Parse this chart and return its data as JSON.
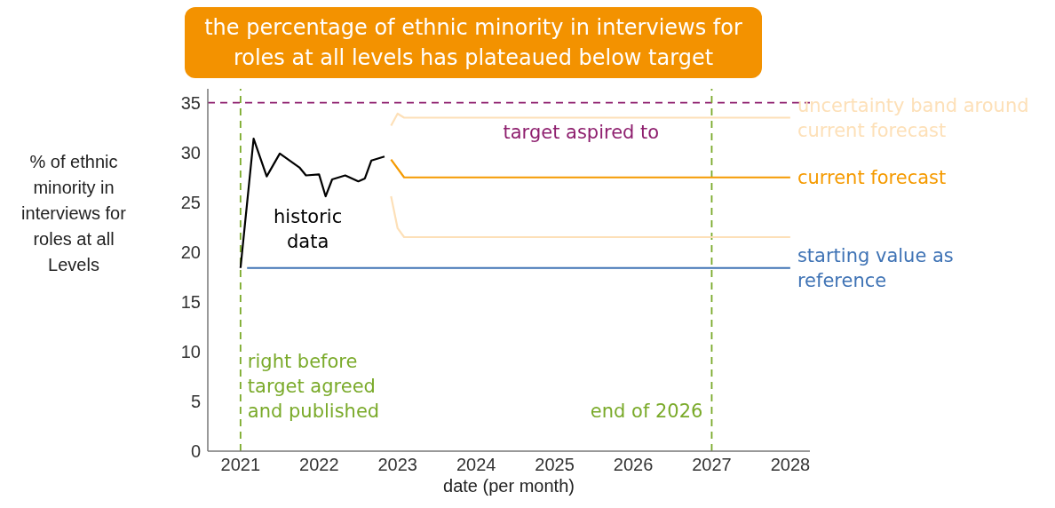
{
  "chart_data": {
    "type": "line",
    "title": "the percentage of ethnic minority in interviews for roles at all levels has plateaued below target",
    "xlabel": "date (per month)",
    "ylabel": "% of ethnic minority in interviews for roles at all Levels",
    "series": [
      {
        "name": "historic data",
        "color": "#000000",
        "x": [
          "2021-01",
          "2021-03",
          "2021-05",
          "2021-07",
          "2021-10",
          "2021-11",
          "2022-01",
          "2022-02",
          "2022-03",
          "2022-05",
          "2022-07",
          "2022-08",
          "2022-09",
          "2022-11"
        ],
        "values": [
          18.4,
          31.4,
          27.6,
          29.9,
          28.5,
          27.7,
          27.8,
          25.6,
          27.3,
          27.7,
          27.1,
          27.4,
          29.2,
          29.6
        ]
      },
      {
        "name": "uncertainty band around current forecast",
        "color": "#fde0b8",
        "x": [
          "2022-12",
          "2023-01",
          "2023-02",
          "2028-01"
        ],
        "values": [
          32.7,
          33.9,
          33.5,
          33.5
        ]
      },
      {
        "name": "current forecast",
        "color": "#f59a00",
        "x": [
          "2022-12",
          "2023-02",
          "2028-01"
        ],
        "values": [
          29.3,
          27.5,
          27.5
        ]
      },
      {
        "color": "#fde0b8",
        "x": [
          "2022-12",
          "2023-01",
          "2023-02",
          "2028-01"
        ],
        "values": [
          25.6,
          22.4,
          21.5,
          21.5
        ]
      },
      {
        "name": "starting value as reference",
        "color": "#3f73b5",
        "x": [
          "2021-02",
          "2028-01"
        ],
        "values": [
          18.4,
          18.4
        ]
      }
    ],
    "ref_lines": [
      {
        "axis": "y",
        "value": 35,
        "label": "target aspired to",
        "color": "#8e1f6e",
        "line_style": "dashed"
      },
      {
        "axis": "x",
        "value": "2021-01",
        "label": "right before target agreed and published",
        "color": "#7aaa2a",
        "line_style": "dashed"
      },
      {
        "axis": "x",
        "value": "2027-01",
        "label": "end of 2026",
        "color": "#7aaa2a",
        "line_style": "dashed"
      }
    ],
    "xlim": [
      "2020-08",
      "2028-04"
    ],
    "xticks": [
      "2021",
      "2022",
      "2023",
      "2024",
      "2025",
      "2026",
      "2027",
      "2028"
    ],
    "ylim": [
      0,
      36.4
    ],
    "yticks": [
      0,
      5,
      10,
      15,
      20,
      25,
      30,
      35
    ],
    "grid": false,
    "legend": false,
    "marker": "none",
    "line_style": "solid"
  }
}
